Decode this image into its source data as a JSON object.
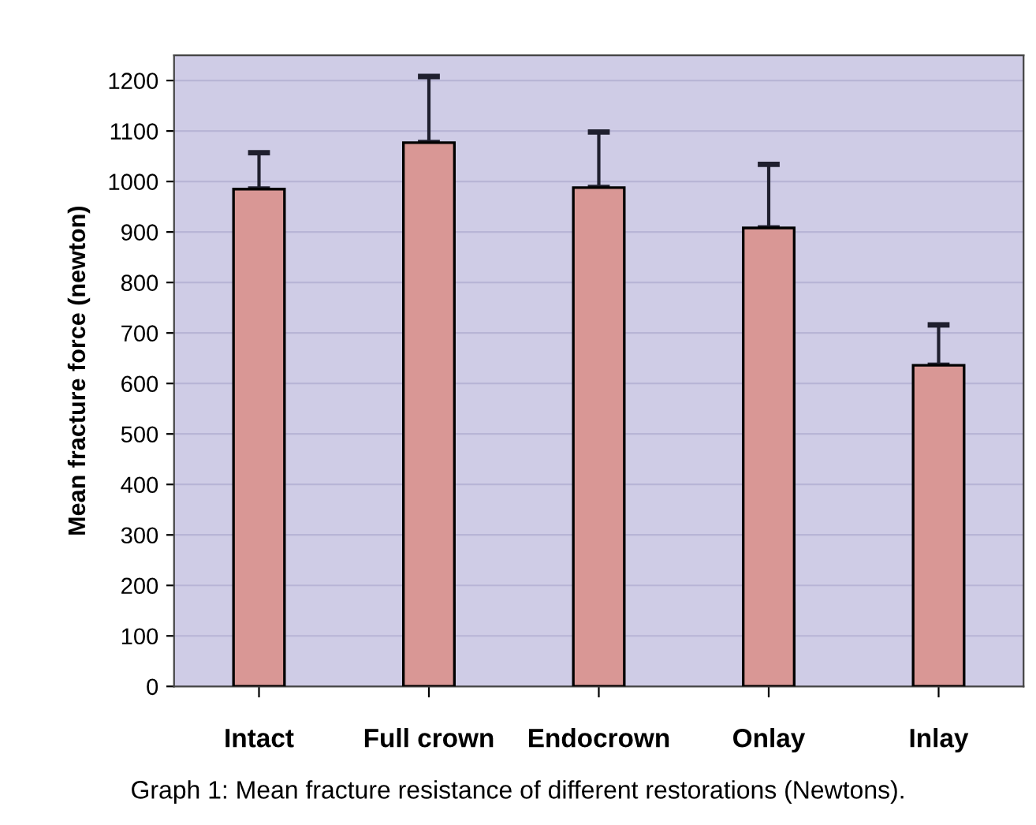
{
  "chart_data": {
    "type": "bar",
    "ylabel": "Mean fracture force (newton)",
    "categories": [
      "Intact",
      "Full crown",
      "Endocrown",
      "Onlay",
      "Inlay"
    ],
    "values": [
      985,
      1077,
      988,
      908,
      636
    ],
    "errors": [
      [
        985,
        1057
      ],
      [
        1077,
        1208
      ],
      [
        988,
        1098
      ],
      [
        908,
        1034
      ],
      [
        636,
        716
      ]
    ],
    "color": "#d99795",
    "ylim": [
      0,
      1250
    ],
    "yticks": [
      0,
      100,
      200,
      300,
      400,
      500,
      600,
      700,
      800,
      900,
      1000,
      1100,
      1200
    ],
    "grid": "y",
    "annotations": [
      "Graph 1: Mean fracture resistance of different restorations (Newtons)."
    ]
  }
}
